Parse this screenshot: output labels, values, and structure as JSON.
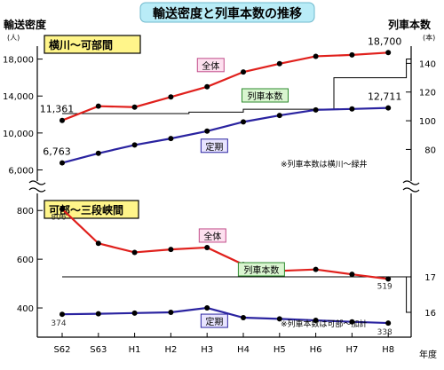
{
  "title": "輸送密度と列車本数の推移",
  "left_axis_title": "輸送密度",
  "left_axis_unit": "(人)",
  "right_axis_title": "列車本数",
  "right_axis_unit": "(本)",
  "x_axis_title": "年度",
  "colors": {
    "total": "#e0201c",
    "regular": "#2a23a0",
    "trains": "#000000",
    "title_bg": "#b9ecf7",
    "section_bg": "#fff58a"
  },
  "chart_data": [
    {
      "type": "line",
      "section_label": "横川〜可部間",
      "categories": [
        "S62",
        "S63",
        "H1",
        "H2",
        "H3",
        "H4",
        "H5",
        "H6",
        "H7",
        "H8"
      ],
      "y_ticks": [
        "18,000",
        "14,000",
        "10,000",
        "6,000"
      ],
      "y_tick_values": [
        18000,
        14000,
        10000,
        6000
      ],
      "ylim": [
        4800,
        19400
      ],
      "right_ticks": [
        "140",
        "120",
        "100",
        "80"
      ],
      "right_tick_values": [
        140,
        120,
        100,
        80
      ],
      "right_lim": [
        58,
        152
      ],
      "series": [
        {
          "name": "全体",
          "values": [
            11361,
            12900,
            12800,
            13900,
            15000,
            16600,
            17500,
            18300,
            18450,
            18700
          ],
          "start_label": "11,361",
          "end_label": "18,700"
        },
        {
          "name": "定期",
          "values": [
            6763,
            7800,
            8700,
            9400,
            10200,
            11200,
            11900,
            12500,
            12600,
            12711
          ],
          "start_label": "6,763",
          "end_label": "12,711"
        },
        {
          "name": "列車本数",
          "steps": [
            [
              0,
              105
            ],
            [
              3.5,
              106
            ],
            [
              5,
              108
            ],
            [
              7.5,
              130
            ],
            [
              9.5,
              143
            ]
          ]
        }
      ],
      "annotation": "※列車本数は横川〜緑井"
    },
    {
      "type": "line",
      "section_label": "可部〜三段峡間",
      "categories": [
        "S62",
        "S63",
        "H1",
        "H2",
        "H3",
        "H4",
        "H5",
        "H6",
        "H7",
        "H8"
      ],
      "y_ticks": [
        "800",
        "600",
        "400"
      ],
      "y_tick_values": [
        800,
        600,
        400
      ],
      "ylim": [
        280,
        870
      ],
      "right_ticks": [
        "17",
        "16"
      ],
      "right_tick_values": [
        17,
        16
      ],
      "right_lim": [
        15.3,
        19.35
      ],
      "series": [
        {
          "name": "全体",
          "values": [
            806,
            665,
            628,
            640,
            648,
            578,
            552,
            558,
            538,
            519
          ],
          "start_label": "806",
          "end_label": "519"
        },
        {
          "name": "定期",
          "values": [
            374,
            376,
            379,
            382,
            400,
            360,
            355,
            349,
            343,
            338
          ],
          "start_label": "374",
          "end_label": "338"
        },
        {
          "name": "列車本数",
          "steps": [
            [
              0,
              17
            ],
            [
              9.5,
              16
            ]
          ]
        }
      ],
      "annotation": "※列車本数は可部〜加計"
    }
  ]
}
